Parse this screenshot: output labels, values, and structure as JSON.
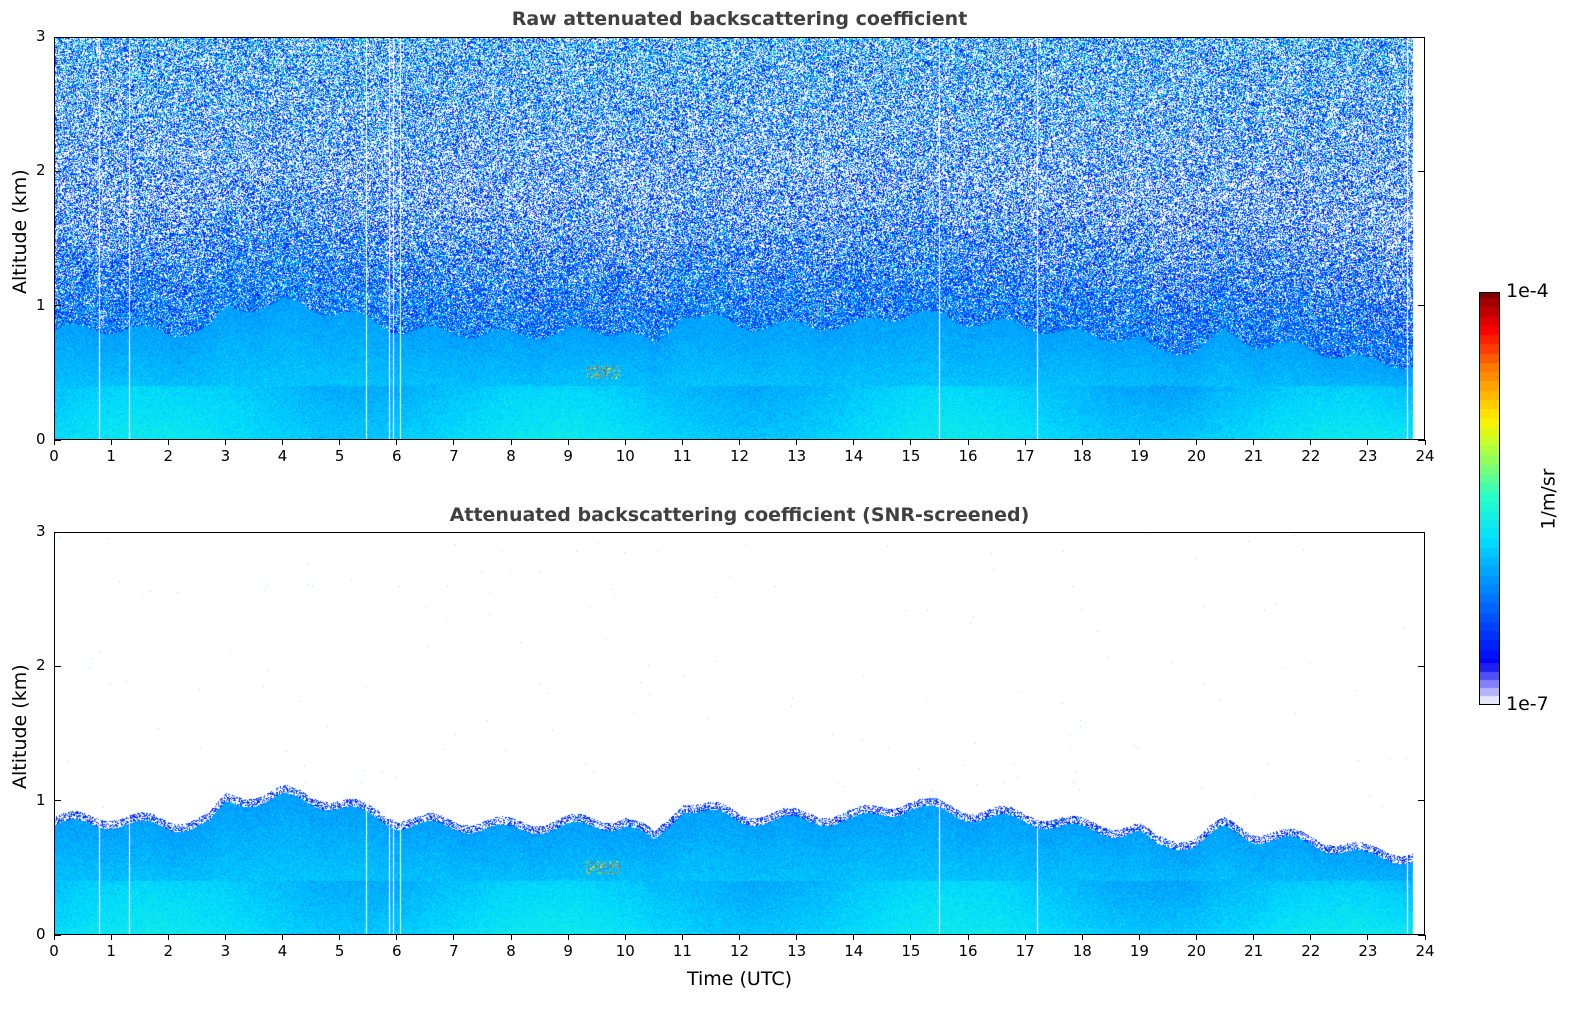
{
  "chart_data": [
    {
      "type": "heatmap",
      "title": "Raw attenuated backscattering coefficient",
      "xlabel": "",
      "ylabel": "Altitude (km)",
      "xlim": [
        0,
        24
      ],
      "ylim": [
        0,
        3
      ],
      "xticks": [
        "0",
        "1",
        "2",
        "3",
        "4",
        "5",
        "6",
        "7",
        "8",
        "9",
        "10",
        "11",
        "12",
        "13",
        "14",
        "15",
        "16",
        "17",
        "18",
        "19",
        "20",
        "21",
        "22",
        "23",
        "24"
      ],
      "yticks": [
        "0",
        "1",
        "2",
        "3"
      ]
    },
    {
      "type": "heatmap",
      "title": "Attenuated backscattering coefficient (SNR-screened)",
      "xlabel": "Time (UTC)",
      "ylabel": "Altitude (km)",
      "xlim": [
        0,
        24
      ],
      "ylim": [
        0,
        3
      ],
      "xticks": [
        "0",
        "1",
        "2",
        "3",
        "4",
        "5",
        "6",
        "7",
        "8",
        "9",
        "10",
        "11",
        "12",
        "13",
        "14",
        "15",
        "16",
        "17",
        "18",
        "19",
        "20",
        "21",
        "22",
        "23",
        "24"
      ],
      "yticks": [
        "0",
        "1",
        "2",
        "3"
      ]
    }
  ],
  "shared": {
    "boundary_layer_top_km": {
      "time": [
        0,
        1,
        2,
        2.7,
        3,
        4,
        5,
        6,
        7,
        8,
        9,
        10,
        10.5,
        11,
        12,
        13,
        14,
        15,
        16,
        17,
        18,
        19,
        19.3,
        20,
        20.5,
        21,
        22,
        23,
        23.8
      ],
      "alt": [
        0.82,
        0.83,
        0.8,
        0.82,
        0.97,
        1.02,
        0.95,
        0.82,
        0.8,
        0.78,
        0.8,
        0.82,
        0.68,
        0.95,
        0.85,
        0.85,
        0.85,
        0.95,
        0.88,
        0.85,
        0.78,
        0.75,
        0.65,
        0.68,
        0.78,
        0.72,
        0.68,
        0.58,
        0.56
      ]
    },
    "data_end_time": 23.8,
    "gap_times": [
      0.77,
      1.3,
      5.45,
      5.85,
      5.92,
      6.05,
      15.5,
      17.22,
      23.7
    ],
    "aerosol_feature": {
      "time": [
        9.3,
        9.9
      ],
      "alt": [
        0.45,
        0.55
      ]
    }
  },
  "colorbar": {
    "label": "1/m/sr",
    "min_label": "1e-7",
    "max_label": "1e-4",
    "log_range": [
      -7,
      -4
    ]
  }
}
